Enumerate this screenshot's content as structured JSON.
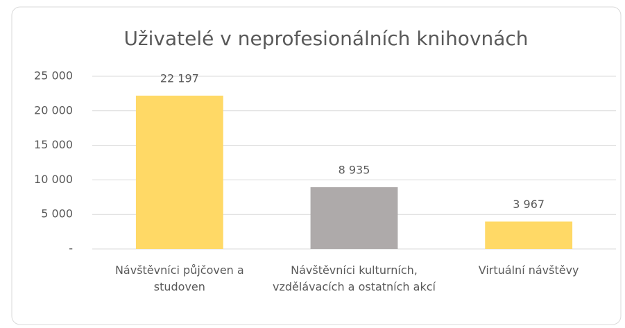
{
  "chart_data": {
    "type": "bar",
    "title": "Uživatelé v neprofesionálních knihovnách",
    "categories": [
      "Návštěvníci půjčoven a studoven",
      "Návštěvníci kulturních, vzdělávacích a ostatních akcí",
      "Virtuální návštěvy"
    ],
    "values": [
      22197,
      8935,
      3967
    ],
    "value_labels": [
      "22 197",
      "8 935",
      "3 967"
    ],
    "colors": [
      "#FFD966",
      "#AEAAAA",
      "#FFD966"
    ],
    "ylim": [
      0,
      25000
    ],
    "yticks": [
      {
        "value": 0,
        "label": "-"
      },
      {
        "value": 5000,
        "label": "5 000"
      },
      {
        "value": 10000,
        "label": "10 000"
      },
      {
        "value": 15000,
        "label": "15 000"
      },
      {
        "value": 20000,
        "label": "20 000"
      },
      {
        "value": 25000,
        "label": "25 000"
      }
    ],
    "grid": true
  }
}
